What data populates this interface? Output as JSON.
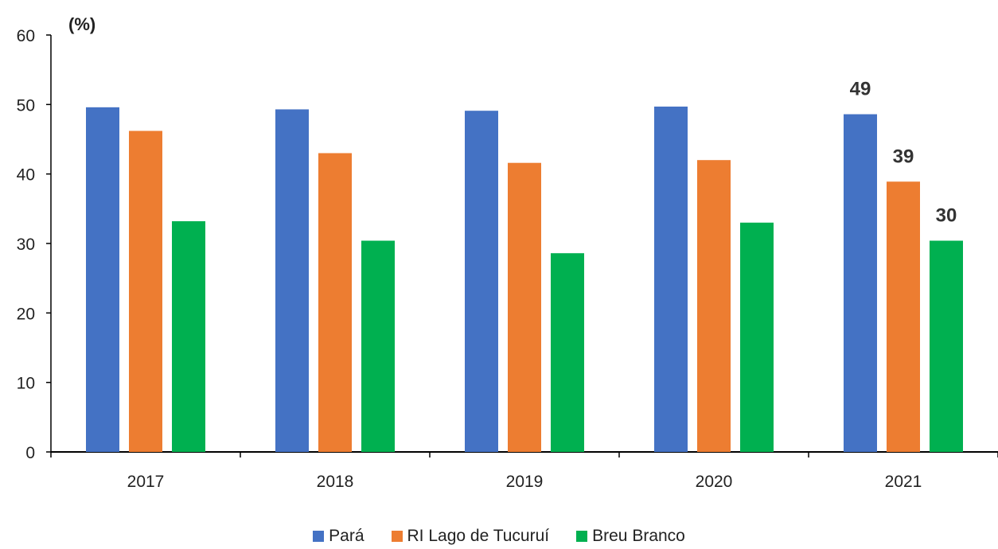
{
  "chart_data": {
    "type": "bar",
    "unit_label": "(%)",
    "categories": [
      "2017",
      "2018",
      "2019",
      "2020",
      "2021"
    ],
    "series": [
      {
        "name": "Pará",
        "color": "#4472C4",
        "values": [
          49.6,
          49.3,
          49.1,
          49.7,
          48.6
        ],
        "data_labels": [
          null,
          null,
          null,
          null,
          "49"
        ]
      },
      {
        "name": "RI Lago de Tucuruí",
        "color": "#ED7D31",
        "values": [
          46.2,
          43.0,
          41.6,
          42.0,
          38.9
        ],
        "data_labels": [
          null,
          null,
          null,
          null,
          "39"
        ]
      },
      {
        "name": "Breu Branco",
        "color": "#00B050",
        "values": [
          33.2,
          30.4,
          28.6,
          33.0,
          30.4
        ],
        "data_labels": [
          null,
          null,
          null,
          null,
          "30"
        ]
      }
    ],
    "ylim": [
      0,
      60
    ],
    "yticks": [
      0,
      10,
      20,
      30,
      40,
      50,
      60
    ],
    "grid": false,
    "legend_position": "bottom"
  }
}
